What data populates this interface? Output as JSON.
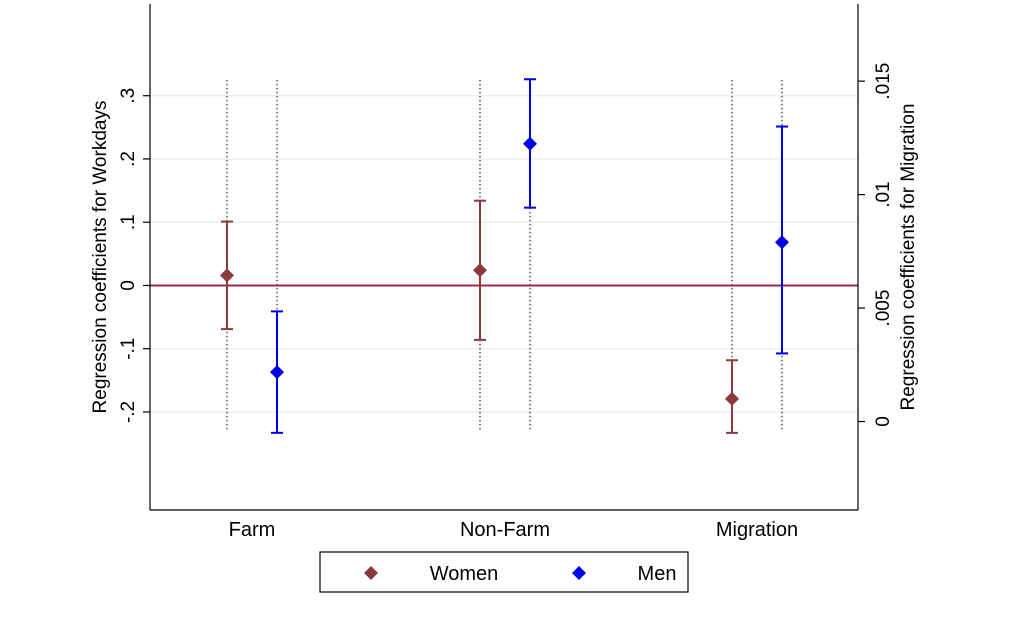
{
  "chart_data": {
    "type": "scatter",
    "subtype": "coefficient-plot-with-confidence-intervals",
    "title": "",
    "xlabel": "",
    "categories": [
      "Farm",
      "Non-Farm",
      "Migration"
    ],
    "left_axis": {
      "label": "Regression coefficients for Workdays",
      "ticks": [
        -0.2,
        -0.1,
        0,
        0.1,
        0.2,
        0.3
      ],
      "tick_labels": [
        "-.2",
        "-.1",
        "0",
        ".1",
        ".2",
        ".3"
      ],
      "range": [
        -0.355,
        0.445
      ]
    },
    "right_axis": {
      "label": "Regression coefficients for Migration",
      "ticks": [
        0,
        0.005,
        0.01,
        0.015
      ],
      "tick_labels": [
        "0",
        ".005",
        ".01",
        ".015"
      ],
      "range": [
        -0.0039,
        0.0184
      ]
    },
    "series": [
      {
        "name": "Women",
        "color": "#8B3A3A",
        "marker": "diamond",
        "points": [
          {
            "category": "Farm",
            "axis": "left",
            "estimate": 0.016,
            "ci_low": -0.069,
            "ci_high": 0.101
          },
          {
            "category": "Non-Farm",
            "axis": "left",
            "estimate": 0.024,
            "ci_low": -0.086,
            "ci_high": 0.134
          },
          {
            "category": "Migration",
            "axis": "right",
            "estimate": 0.001,
            "ci_low": -0.0005,
            "ci_high": 0.0027
          }
        ]
      },
      {
        "name": "Men",
        "color": "#0000E6",
        "marker": "diamond",
        "points": [
          {
            "category": "Farm",
            "axis": "left",
            "estimate": -0.137,
            "ci_low": -0.233,
            "ci_high": -0.041
          },
          {
            "category": "Non-Farm",
            "axis": "left",
            "estimate": 0.224,
            "ci_low": 0.123,
            "ci_high": 0.326
          },
          {
            "category": "Migration",
            "axis": "right",
            "estimate": 0.0079,
            "ci_low": 0.003,
            "ci_high": 0.013
          }
        ]
      }
    ],
    "reference_line": {
      "value": 0,
      "axis": "left",
      "color": "#A0294A"
    },
    "guide_lines": {
      "style": "dotted",
      "color": "#000000",
      "top": 0.325,
      "bottom": -0.23
    },
    "grid": true,
    "legend": {
      "position": "bottom-center",
      "entries": [
        "Women",
        "Men"
      ]
    }
  }
}
